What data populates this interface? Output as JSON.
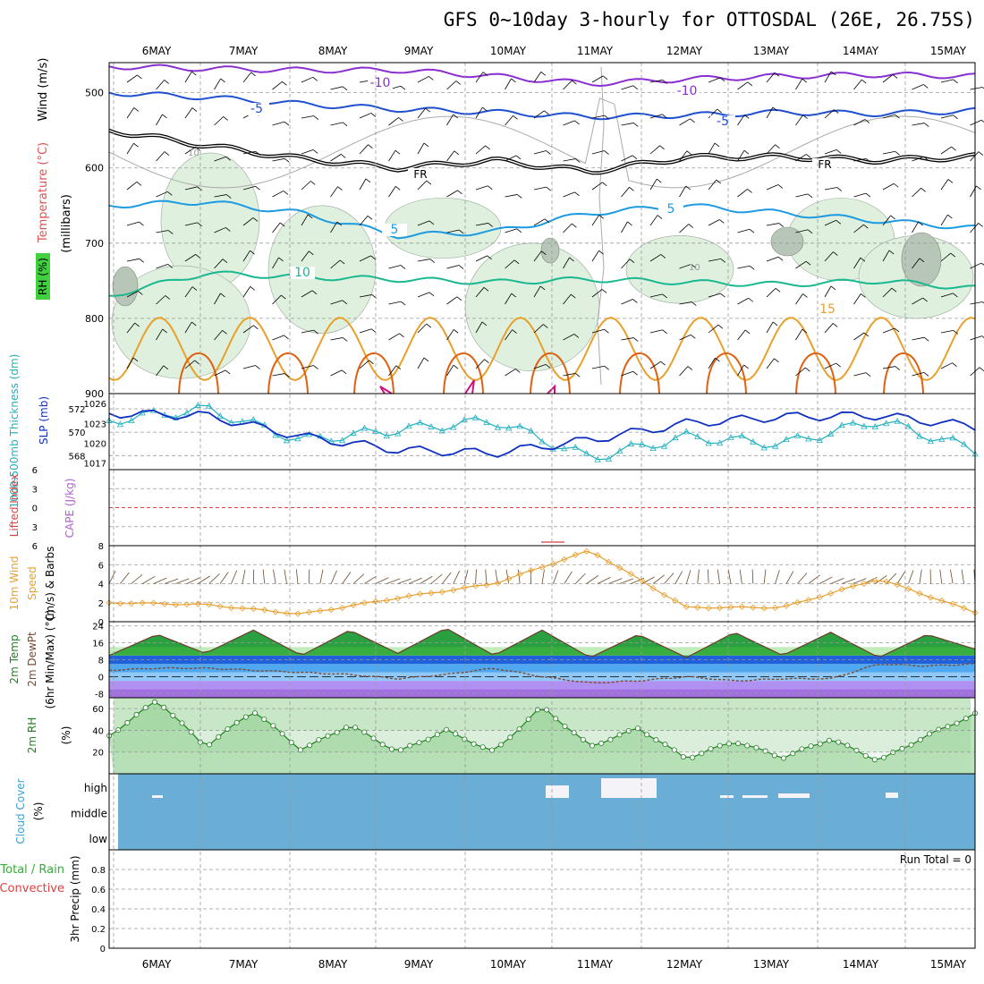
{
  "title": "GFS 0~10day 3-hourly for OTTOSDAL (26E, 26.75S)",
  "dates": [
    "6MAY",
    "7MAY",
    "8MAY",
    "9MAY",
    "10MAY",
    "11MAY",
    "12MAY",
    "13MAY",
    "14MAY",
    "15MAY"
  ],
  "colors": {
    "grid": "#999999",
    "purple": "#8a2fd0",
    "blue": "#2050d0",
    "black": "#000000",
    "cyan": "#1c9be0",
    "teal": "#1ab890",
    "orange": "#e8a02a",
    "darkorange": "#e06010",
    "rhfill": "#dff0df",
    "cloud": "#6aaed6"
  },
  "panel_labels": {
    "upper_wind": "Wind (m/s)",
    "upper_temp": "Temperature (°C)",
    "upper_rh": "RH (%)",
    "upper_unit": "(millibars)",
    "thickness": "1000-500mb Thickness (dm)",
    "slp": "SLP (mb)",
    "lifted_index": "Lifted Index",
    "cape": "CAPE (J/kg)",
    "wind10_a": "10m Wind",
    "wind10_b": "Speed",
    "wind10_c": "(m/s) & Barbs",
    "temp_a": "2m Temp",
    "temp_b": "2m DewPt",
    "temp_c": "(6hr Min/Max) (°C)",
    "rh2m": "2m RH",
    "rh2m_unit": "(%)",
    "cloud": "Cloud Cover",
    "cloud_unit": "(%)",
    "precip_a": "Total / Rain",
    "precip_b": "Convective",
    "precip_c": "3hr Precip (mm)",
    "run_total": "Run Total = 0"
  },
  "contour_labels": {
    "m10a": "-10",
    "m10b": "-10",
    "m5": "-5",
    "fr1": "FR",
    "fr2": "FR",
    "p5a": "5",
    "p5b": "5",
    "p10": "10",
    "p15": "15",
    "gray10a": "10",
    "gray10b": "10"
  },
  "cloud_levels": [
    "high",
    "middle",
    "low"
  ],
  "chart_data": [
    {
      "type": "line",
      "name": "upper-air cross-section",
      "ylabel": "(millibars)",
      "yticks": [
        500,
        600,
        700,
        800,
        900
      ],
      "ylim": [
        460,
        900
      ],
      "x": [
        "6MAY",
        "7MAY",
        "8MAY",
        "9MAY",
        "10MAY",
        "11MAY",
        "12MAY",
        "13MAY",
        "14MAY",
        "15MAY"
      ],
      "series": [
        {
          "name": "-10",
          "values": [
            465,
            468,
            470,
            470,
            478,
            488,
            482,
            478,
            476,
            478
          ]
        },
        {
          "name": "-5",
          "values": [
            500,
            506,
            515,
            522,
            526,
            532,
            530,
            526,
            528,
            524
          ]
        },
        {
          "name": "FR",
          "values": [
            550,
            570,
            588,
            600,
            590,
            605,
            586,
            585,
            590,
            585
          ]
        },
        {
          "name": "5",
          "values": [
            650,
            645,
            660,
            690,
            685,
            660,
            650,
            660,
            670,
            680
          ]
        },
        {
          "name": "10",
          "values": [
            770,
            740,
            745,
            748,
            752,
            748,
            752,
            755,
            750,
            760
          ]
        }
      ]
    },
    {
      "type": "line",
      "name": "thickness and slp",
      "y_left_ticks": [
        568,
        570,
        572
      ],
      "y_right_ticks": [
        1017,
        1020,
        1023,
        1026
      ],
      "x": [
        "6MAY",
        "7MAY",
        "8MAY",
        "9MAY",
        "10MAY",
        "11MAY",
        "12MAY",
        "13MAY",
        "14MAY",
        "15MAY"
      ],
      "series": [
        {
          "name": "1000-500mb Thickness (dm)",
          "values": [
            571.0,
            572.0,
            569.3,
            570.2,
            571.0,
            567.8,
            569.6,
            569.0,
            571.0,
            568.5
          ]
        },
        {
          "name": "SLP (mb)",
          "values": [
            1024.5,
            1024.2,
            1021.0,
            1019.0,
            1018.5,
            1020.5,
            1023.0,
            1024.0,
            1024.2,
            1022.5
          ]
        }
      ]
    },
    {
      "type": "line",
      "name": "lifted index and cape",
      "yticks": [
        -6,
        -3,
        0,
        3,
        6
      ],
      "ylim": [
        -6,
        6
      ]
    },
    {
      "type": "line",
      "name": "10m wind speed",
      "ylabel": "(m/s)",
      "yticks": [
        0,
        2,
        4,
        6,
        8
      ],
      "ylim": [
        0,
        8
      ],
      "x": [
        "6MAY",
        "7MAY",
        "8MAY",
        "9MAY",
        "10MAY",
        "11MAY",
        "12MAY",
        "13MAY",
        "14MAY",
        "15MAY"
      ],
      "series": [
        {
          "name": "Speed",
          "values": [
            2.0,
            1.8,
            0.8,
            2.5,
            4.0,
            7.5,
            1.5,
            1.5,
            4.5,
            1.0
          ]
        }
      ]
    },
    {
      "type": "area",
      "name": "2m temperature and dewpoint",
      "ylabel": "(°C)",
      "yticks": [
        -8,
        0,
        8,
        16,
        24
      ],
      "ylim": [
        -10,
        26
      ],
      "x": [
        "6MAY",
        "6MAY",
        "7MAY",
        "7MAY",
        "8MAY",
        "8MAY",
        "9MAY",
        "9MAY",
        "10MAY",
        "10MAY",
        "11MAY",
        "11MAY",
        "12MAY",
        "12MAY",
        "13MAY",
        "13MAY",
        "14MAY",
        "14MAY",
        "15MAY"
      ],
      "series": [
        {
          "name": "2m Temp",
          "values": [
            10,
            20,
            11,
            22,
            10,
            22,
            11,
            23,
            10,
            22,
            9,
            20,
            9,
            21,
            10,
            21,
            9,
            20,
            13
          ]
        },
        {
          "name": "2m DewPt",
          "values": [
            3,
            4,
            4,
            3,
            2,
            1,
            -1,
            1,
            4,
            0,
            -3,
            -2,
            0,
            -2,
            -1,
            -1,
            6,
            5,
            6
          ]
        }
      ]
    },
    {
      "type": "line",
      "name": "2m RH",
      "ylabel": "(%)",
      "yticks": [
        20,
        40,
        60
      ],
      "ylim": [
        0,
        70
      ],
      "x": [
        "6MAY",
        "6MAY",
        "7MAY",
        "7MAY",
        "8MAY",
        "8MAY",
        "9MAY",
        "9MAY",
        "10MAY",
        "10MAY",
        "11MAY",
        "11MAY",
        "12MAY",
        "12MAY",
        "13MAY",
        "13MAY",
        "14MAY",
        "14MAY",
        "15MAY"
      ],
      "series": [
        {
          "name": "2m RH",
          "values": [
            35,
            68,
            25,
            58,
            22,
            45,
            20,
            40,
            20,
            62,
            25,
            42,
            14,
            30,
            15,
            32,
            12,
            35,
            55
          ]
        }
      ]
    },
    {
      "type": "bar",
      "name": "cloud cover",
      "categories": [
        "high",
        "middle",
        "low"
      ]
    },
    {
      "type": "bar",
      "name": "3hr precip",
      "ylabel": "3hr Precip (mm)",
      "yticks": [
        0,
        0.2,
        0.4,
        0.6,
        0.8
      ],
      "ylim": [
        0,
        1.0
      ],
      "run_total": "Run Total = 0"
    }
  ]
}
